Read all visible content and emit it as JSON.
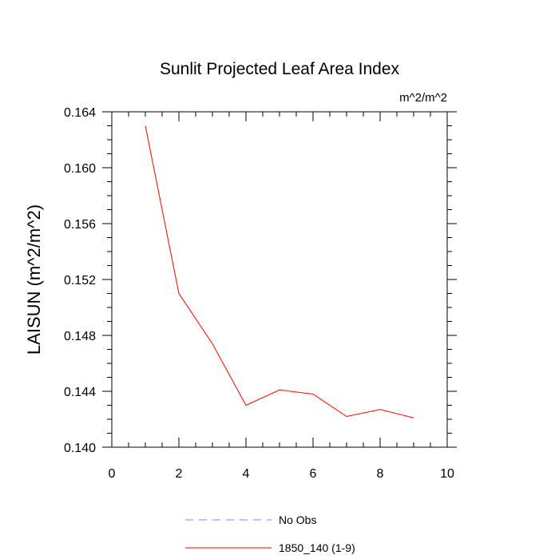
{
  "chart_data": {
    "type": "line",
    "title": "Sunlit Projected Leaf Area Index",
    "units_label": "m^2/m^2",
    "xlabel": "",
    "ylabel": "LAISUN  (m^2/m^2)",
    "xlim": [
      0,
      10
    ],
    "ylim": [
      0.14,
      0.164
    ],
    "x_ticks": [
      0,
      2,
      4,
      6,
      8,
      10
    ],
    "x_tick_labels": [
      "0",
      "2",
      "4",
      "6",
      "8",
      "10"
    ],
    "y_ticks": [
      0.14,
      0.144,
      0.148,
      0.152,
      0.156,
      0.16,
      0.164
    ],
    "y_tick_labels": [
      "0.140",
      "0.144",
      "0.148",
      "0.152",
      "0.156",
      "0.160",
      "0.164"
    ],
    "grid": false,
    "legend_position": "bottom",
    "series": [
      {
        "name": "No Obs",
        "color": "#8080ff",
        "dash": "dashed",
        "x": [],
        "values": []
      },
      {
        "name": "1850_140 (1-9)",
        "color": "#ff0000",
        "dash": "solid",
        "x": [
          1,
          2,
          3,
          4,
          5,
          6,
          7,
          8,
          9
        ],
        "values": [
          0.163,
          0.151,
          0.1474,
          0.143,
          0.1441,
          0.1438,
          0.1422,
          0.1427,
          0.1421
        ]
      }
    ]
  }
}
